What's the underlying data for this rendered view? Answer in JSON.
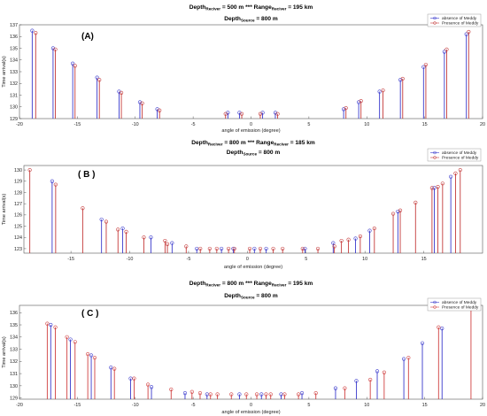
{
  "chart_data": [
    {
      "type": "scatter",
      "panel_label": "(A)",
      "title_parts": [
        {
          "t": "Depth",
          "sub": false
        },
        {
          "t": "Reciver",
          "sub": true
        },
        {
          "t": " = 500 m *** Range",
          "sub": false
        },
        {
          "t": "Reciver",
          "sub": true
        },
        {
          "t": " = 195 km",
          "sub": false
        }
      ],
      "subtitle_parts": [
        {
          "t": "Depth",
          "sub": false
        },
        {
          "t": "Source",
          "sub": true
        },
        {
          "t": " = 800 m",
          "sub": false
        }
      ],
      "xlabel": "angle of emission (degree)",
      "ylabel": "Time arrival(s)",
      "xlim": [
        -20,
        20
      ],
      "ylim": [
        129,
        137
      ],
      "xticks": [
        "-20",
        "-15",
        "-10",
        "-5",
        "0",
        "5",
        "10",
        "15",
        "20"
      ],
      "yticks": [
        "129",
        "130",
        "131",
        "132",
        "133",
        "134",
        "135",
        "136",
        "137"
      ],
      "legend": [
        "absence of Meddy",
        "Presence of Meddy"
      ],
      "legend_position": "top-right",
      "series": [
        {
          "name": "absence of Meddy",
          "color": "#3a3acc",
          "x": [
            -18.9,
            -17.1,
            -15.4,
            -13.3,
            -11.4,
            -9.6,
            -8.1,
            -2.0,
            -1.0,
            1.0,
            2.1,
            8.0,
            9.3,
            11.1,
            12.9,
            14.9,
            16.7,
            18.6
          ],
          "y": [
            136.5,
            135.0,
            133.7,
            132.5,
            131.3,
            130.4,
            129.8,
            129.5,
            129.5,
            129.5,
            129.5,
            129.8,
            130.4,
            131.3,
            132.3,
            133.4,
            134.7,
            136.2
          ]
        },
        {
          "name": "Presence of Meddy",
          "color": "#c43a3a",
          "x": [
            -18.6,
            -16.9,
            -15.2,
            -13.1,
            -11.2,
            -9.4,
            -7.9,
            -2.2,
            -0.8,
            0.8,
            2.3,
            8.2,
            9.5,
            11.4,
            13.1,
            15.1,
            16.9,
            18.8
          ],
          "y": [
            136.3,
            134.9,
            133.5,
            132.3,
            131.2,
            130.3,
            129.7,
            129.4,
            129.4,
            129.4,
            129.4,
            129.9,
            130.5,
            131.4,
            132.4,
            133.6,
            134.9,
            136.4
          ]
        }
      ]
    },
    {
      "type": "scatter",
      "panel_label": "( B )",
      "title_parts": [
        {
          "t": "Depth",
          "sub": false
        },
        {
          "t": "Reciver",
          "sub": true
        },
        {
          "t": " = 800 m *** Range",
          "sub": false
        },
        {
          "t": "Reciver",
          "sub": true
        },
        {
          "t": " = 185 km",
          "sub": false
        }
      ],
      "subtitle_parts": [
        {
          "t": "Depth",
          "sub": false
        },
        {
          "t": "Source",
          "sub": true
        },
        {
          "t": " = 800 m",
          "sub": false
        }
      ],
      "xlabel": "angle of emission (degree)",
      "ylabel": "Time arrival(s)",
      "xlim": [
        -19,
        20
      ],
      "ylim": [
        122.6,
        130.4
      ],
      "xticks": [
        "-15",
        "-10",
        "-5",
        "0",
        "5",
        "10",
        "15"
      ],
      "yticks": [
        "123",
        "124",
        "125",
        "126",
        "127",
        "128",
        "129",
        "130"
      ],
      "legend": [
        "absence of Meddy",
        "Presence of Meddy"
      ],
      "legend_position": "top-right",
      "series": [
        {
          "name": "absence of Meddy",
          "color": "#3a3acc",
          "x": [
            -16.6,
            -12.4,
            -10.6,
            -8.2,
            -6.4,
            -4.3,
            -2.2,
            -1.2,
            0.6,
            1.6,
            4.9,
            7.3,
            9.2,
            10.4,
            12.8,
            15.9,
            17.3
          ],
          "y": [
            129.0,
            125.6,
            124.8,
            124.0,
            123.5,
            123.0,
            123.0,
            123.0,
            123.0,
            123.0,
            123.0,
            123.5,
            123.9,
            124.6,
            126.3,
            128.4,
            129.4
          ]
        },
        {
          "name": "Presence of Meddy",
          "color": "#c43a3a",
          "x": [
            -18.5,
            -16.3,
            -14.0,
            -12.0,
            -11.0,
            -10.3,
            -8.8,
            -7.0,
            -6.8,
            -5.2,
            -4.0,
            -3.2,
            -2.6,
            -1.6,
            -1.1,
            0.2,
            1.1,
            2.2,
            3.0,
            4.7,
            6.0,
            7.4,
            8.0,
            8.6,
            9.6,
            10.8,
            12.4,
            13.0,
            14.3,
            15.7,
            16.2,
            16.6,
            17.7,
            18.1
          ],
          "y": [
            130.0,
            128.7,
            126.6,
            125.4,
            124.7,
            124.5,
            124.0,
            123.7,
            123.4,
            123.2,
            123.0,
            123.0,
            123.0,
            123.0,
            123.0,
            123.0,
            123.0,
            123.0,
            123.0,
            123.0,
            123.0,
            123.2,
            123.7,
            123.8,
            124.1,
            124.8,
            126.1,
            126.4,
            127.1,
            128.4,
            128.5,
            128.8,
            129.7,
            130.0
          ]
        }
      ]
    },
    {
      "type": "scatter",
      "panel_label": "( C )",
      "title_parts": [
        {
          "t": "Depth",
          "sub": false
        },
        {
          "t": "Reciver",
          "sub": true
        },
        {
          "t": " = 800 m *** Range",
          "sub": false
        },
        {
          "t": "Reciver",
          "sub": true
        },
        {
          "t": " = 195 km",
          "sub": false
        }
      ],
      "subtitle_parts": [
        {
          "t": "Depth",
          "sub": false
        },
        {
          "t": "Source",
          "sub": true
        },
        {
          "t": " = 800 m",
          "sub": false
        }
      ],
      "xlabel": "angle of emission (degree)",
      "ylabel": "Time arrival(s)",
      "xlim": [
        -20,
        20
      ],
      "ylim": [
        128.9,
        136.6
      ],
      "xticks": [
        "-20",
        "-15",
        "-10",
        "-5",
        "0",
        "5",
        "10",
        "15",
        "20"
      ],
      "yticks": [
        "129",
        "130",
        "131",
        "132",
        "133",
        "134",
        "135",
        "136"
      ],
      "legend": [
        "absence of Meddy",
        "Presence of Meddy"
      ],
      "legend_position": "top-right",
      "series": [
        {
          "name": "absence of Meddy",
          "color": "#3a3acc",
          "x": [
            -17.3,
            -15.6,
            -13.8,
            -12.1,
            -10.4,
            -8.6,
            -5.7,
            -3.8,
            -1.0,
            0.9,
            2.6,
            4.4,
            7.3,
            9.1,
            10.9,
            13.2,
            14.8,
            16.5
          ],
          "y": [
            135.0,
            133.8,
            132.5,
            131.5,
            130.6,
            129.9,
            129.4,
            129.3,
            129.3,
            129.3,
            129.3,
            129.4,
            129.8,
            130.4,
            131.2,
            132.2,
            133.5,
            134.7
          ]
        },
        {
          "name": "Presence of Meddy",
          "color": "#d04040",
          "x": [
            -17.6,
            -16.9,
            -15.9,
            -15.2,
            -14.1,
            -13.5,
            -11.8,
            -10.1,
            -8.9,
            -6.9,
            -5.1,
            -4.4,
            -3.5,
            -2.9,
            -1.7,
            -0.4,
            0.5,
            1.3,
            1.7,
            2.9,
            4.1,
            5.6,
            8.1,
            10.3,
            11.5,
            13.6,
            16.2,
            19.0
          ],
          "y": [
            135.1,
            134.8,
            134.0,
            133.6,
            132.6,
            132.3,
            131.4,
            130.6,
            130.1,
            129.7,
            129.5,
            129.4,
            129.3,
            129.3,
            129.3,
            129.3,
            129.3,
            129.3,
            129.3,
            129.3,
            129.3,
            129.4,
            129.8,
            130.5,
            131.1,
            132.3,
            134.8,
            136.3
          ]
        }
      ]
    }
  ]
}
